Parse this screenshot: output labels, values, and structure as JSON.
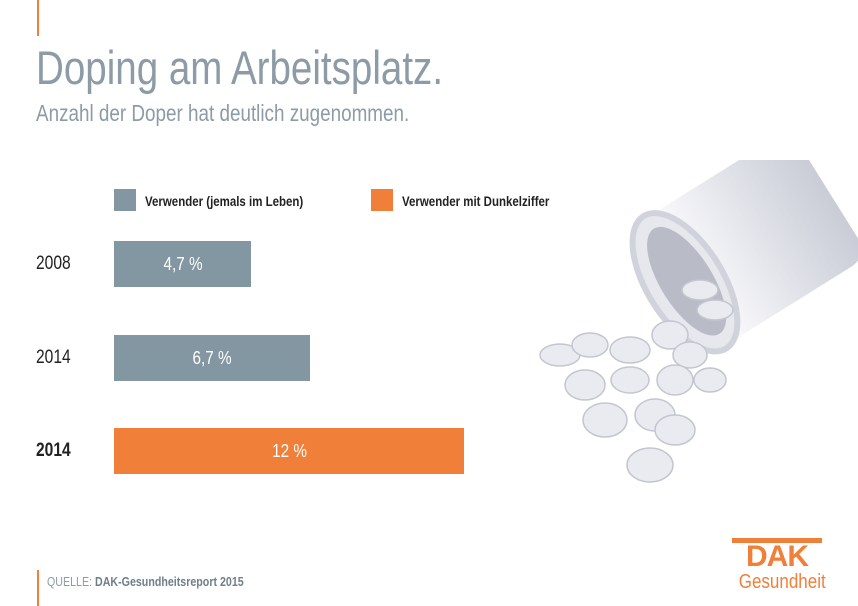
{
  "title": "Doping am Arbeitsplatz.",
  "subtitle": "Anzahl der Doper hat deutlich zugenommen.",
  "chart_data": {
    "type": "bar",
    "orientation": "horizontal",
    "categories": [
      "2008",
      "2014",
      "2014"
    ],
    "values": [
      4.7,
      6.7,
      12
    ],
    "value_labels": [
      "4,7 %",
      "6,7 %",
      "12 %"
    ],
    "bar_series": [
      "Verwender (jemals im Leben)",
      "Verwender (jemals im Leben)",
      "Verwender mit Dunkelziffer"
    ],
    "legend": [
      {
        "name": "Verwender (jemals im Leben)",
        "color": "#8297a2"
      },
      {
        "name": "Verwender mit Dunkelziffer",
        "color": "#f07f3a"
      }
    ],
    "legend_position": "top",
    "grid": false
  },
  "source": {
    "label": "QUELLE:",
    "text": "DAK-Gesundheitsreport 2015"
  },
  "logo": {
    "brand": "DAK",
    "sub": "Gesundheit",
    "color": "#f07f3a"
  }
}
